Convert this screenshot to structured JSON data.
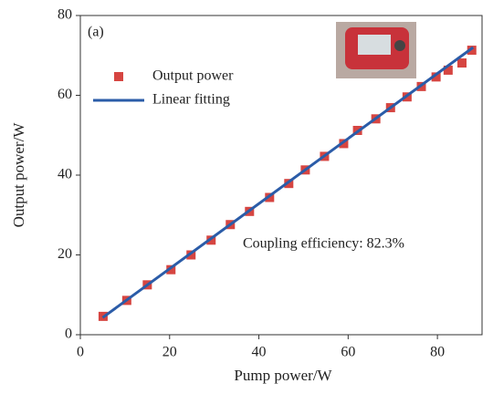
{
  "chart_data": {
    "type": "scatter",
    "xlabel": "Pump power/W",
    "ylabel": "Output power/W",
    "xlim": [
      0,
      90
    ],
    "xticks": [
      0,
      20,
      40,
      60,
      80
    ],
    "ylim": [
      0,
      80
    ],
    "yticks": [
      0,
      20,
      40,
      60,
      80
    ],
    "annotations": [
      "(a)",
      "Coupling efficiency: 82.3%"
    ],
    "legend": "upper left",
    "series": [
      {
        "name": "Output power",
        "type": "scatter",
        "color": "#d64541",
        "x": [
          5.1,
          10.4,
          15.0,
          20.3,
          24.8,
          29.3,
          33.6,
          37.9,
          42.4,
          46.7,
          50.4,
          54.7,
          59.0,
          62.1,
          66.2,
          69.5,
          73.2,
          76.4,
          79.7,
          82.4,
          85.5,
          87.7
        ],
        "values": [
          4.6,
          8.6,
          12.5,
          16.3,
          20.0,
          23.7,
          27.6,
          30.9,
          34.4,
          37.9,
          41.3,
          44.7,
          47.9,
          51.2,
          54.1,
          56.9,
          59.6,
          62.2,
          64.6,
          66.3,
          68.1,
          71.3
        ]
      },
      {
        "name": "Linear fitting",
        "type": "line",
        "color": "#2b5ca8",
        "x": [
          5,
          88
        ],
        "values": [
          4.3,
          72.0
        ]
      }
    ]
  }
}
